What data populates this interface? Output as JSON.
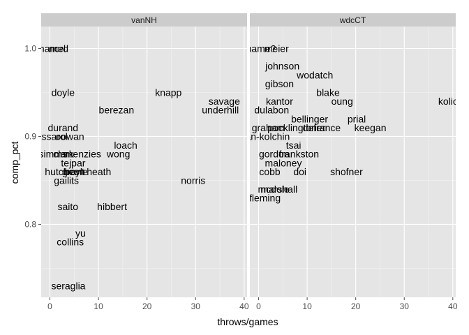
{
  "chart_data": {
    "type": "scatter",
    "xlabel": "throws/games",
    "ylabel": "comp_pct",
    "x_ticks": [
      0,
      10,
      20,
      30,
      40
    ],
    "y_ticks": [
      0.8,
      0.9,
      1.0
    ],
    "xlim": [
      -1.8,
      40.6
    ],
    "ylim": [
      0.717,
      1.025
    ],
    "grid": true,
    "panels": [
      {
        "name": "vanNH",
        "points": [
          {
            "label": "hamel",
            "x": 0.5,
            "y": 1.0
          },
          {
            "label": "nord",
            "x": 1.8,
            "y": 1.0
          },
          {
            "label": "doyle",
            "x": 2.7,
            "y": 0.95
          },
          {
            "label": "knapp",
            "x": 24.4,
            "y": 0.95
          },
          {
            "label": "savage",
            "x": 35.9,
            "y": 0.94
          },
          {
            "label": "berezan",
            "x": 13.7,
            "y": 0.93
          },
          {
            "label": "underhill",
            "x": 35.1,
            "y": 0.93
          },
          {
            "label": "durand",
            "x": 2.7,
            "y": 0.91
          },
          {
            "label": "cessarol",
            "x": -0.1,
            "y": 0.9
          },
          {
            "label": "oowan",
            "x": 4.1,
            "y": 0.9
          },
          {
            "label": "loach",
            "x": 15.6,
            "y": 0.89
          },
          {
            "label": "wong",
            "x": 14.1,
            "y": 0.88
          },
          {
            "label": "menzies",
            "x": 6.8,
            "y": 0.88
          },
          {
            "label": "simms",
            "x": 0.6,
            "y": 0.88
          },
          {
            "label": "clark",
            "x": 2.8,
            "y": 0.88
          },
          {
            "label": "tejpar",
            "x": 4.8,
            "y": 0.87
          },
          {
            "label": "hutcheon",
            "x": 3.1,
            "y": 0.86
          },
          {
            "label": "boyle",
            "x": 5.4,
            "y": 0.86
          },
          {
            "label": "grant",
            "x": 4.8,
            "y": 0.86
          },
          {
            "label": "heath",
            "x": 10.1,
            "y": 0.86
          },
          {
            "label": "gailits",
            "x": 3.4,
            "y": 0.85
          },
          {
            "label": "norris",
            "x": 29.5,
            "y": 0.85
          },
          {
            "label": "saito",
            "x": 3.7,
            "y": 0.82
          },
          {
            "label": "hibbert",
            "x": 12.8,
            "y": 0.82
          },
          {
            "label": "yu",
            "x": 6.3,
            "y": 0.79
          },
          {
            "label": "collins",
            "x": 4.2,
            "y": 0.78
          },
          {
            "label": "seraglia",
            "x": 3.8,
            "y": 0.73
          }
        ]
      },
      {
        "name": "wdcCT",
        "points": [
          {
            "label": "name?",
            "x": 0.5,
            "y": 1.0
          },
          {
            "label": "meier",
            "x": 3.7,
            "y": 1.0
          },
          {
            "label": "johnson",
            "x": 4.9,
            "y": 0.98
          },
          {
            "label": "wodatch",
            "x": 11.6,
            "y": 0.97
          },
          {
            "label": "gibson",
            "x": 4.3,
            "y": 0.96
          },
          {
            "label": "blake",
            "x": 14.3,
            "y": 0.95
          },
          {
            "label": "kantor",
            "x": 4.3,
            "y": 0.94
          },
          {
            "label": "oung",
            "x": 17.2,
            "y": 0.94
          },
          {
            "label": "kolick",
            "x": 39.5,
            "y": 0.94
          },
          {
            "label": "dulabon",
            "x": 2.7,
            "y": 0.93
          },
          {
            "label": "bellinger",
            "x": 10.5,
            "y": 0.92
          },
          {
            "label": "prial",
            "x": 20.2,
            "y": 0.92
          },
          {
            "label": "graham",
            "x": 2.0,
            "y": 0.91
          },
          {
            "label": "pocklingtoner",
            "x": 7.8,
            "y": 0.91
          },
          {
            "label": "defrance",
            "x": 13.0,
            "y": 0.91
          },
          {
            "label": "keegan",
            "x": 23.0,
            "y": 0.91
          },
          {
            "label": "boylan-kolchin",
            "x": 0.0,
            "y": 0.9
          },
          {
            "label": "tsai",
            "x": 7.2,
            "y": 0.89
          },
          {
            "label": "gordon",
            "x": 3.2,
            "y": 0.88
          },
          {
            "label": "frankston",
            "x": 8.3,
            "y": 0.88
          },
          {
            "label": "maloney",
            "x": 5.1,
            "y": 0.87
          },
          {
            "label": "cobb",
            "x": 2.3,
            "y": 0.86
          },
          {
            "label": "doi",
            "x": 8.5,
            "y": 0.86
          },
          {
            "label": "shofner",
            "x": 18.1,
            "y": 0.86
          },
          {
            "label": "marshall",
            "x": 4.2,
            "y": 0.84
          },
          {
            "label": "mcdole",
            "x": 3.1,
            "y": 0.84
          },
          {
            "label": "fleming",
            "x": 1.3,
            "y": 0.83
          }
        ]
      }
    ]
  }
}
